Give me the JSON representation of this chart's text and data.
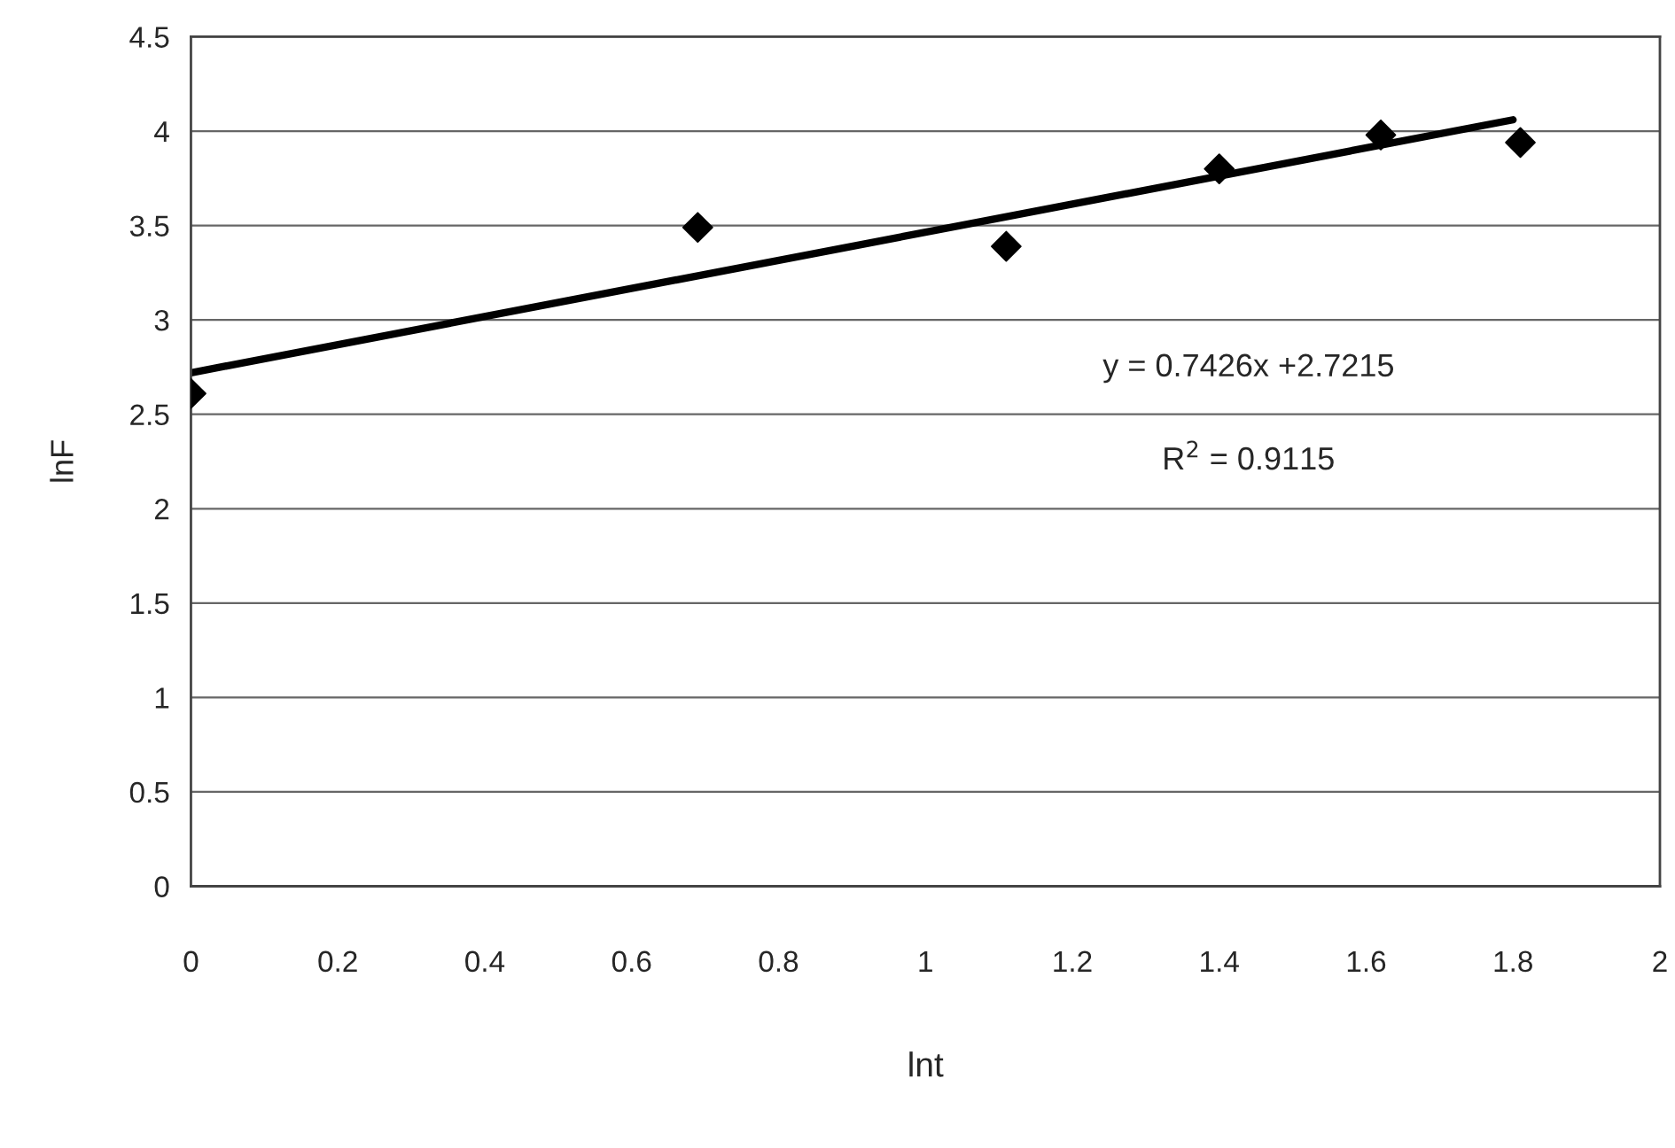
{
  "chart_data": {
    "type": "scatter",
    "xlabel": "lnt",
    "ylabel": "lnF",
    "series": [
      {
        "color": "#000000",
        "marker": "diamond",
        "x": [
          0,
          0.69,
          1.11,
          1.4,
          1.62,
          1.81
        ],
        "values": [
          2.61,
          3.49,
          3.39,
          3.8,
          3.98,
          3.94
        ]
      },
      {
        "type": "line",
        "color": "#000000",
        "marker": "none",
        "line_style": "solid",
        "x": [
          0,
          1.8
        ],
        "values": [
          2.72,
          4.06
        ]
      }
    ],
    "annotations": [
      "y = 0.7426x +2.7215",
      "R$^{2}$ = 0.9115"
    ],
    "xlim": [
      0,
      2
    ],
    "xticks": [
      0,
      0.2,
      0.4,
      0.6,
      0.8,
      1,
      1.2,
      1.4,
      1.6,
      1.8,
      2
    ],
    "ylim": [
      0,
      4.5
    ],
    "yticks": [
      0,
      0.5,
      1,
      1.5,
      2,
      2.5,
      3,
      3.5,
      4,
      4.5
    ],
    "grid": "y"
  }
}
